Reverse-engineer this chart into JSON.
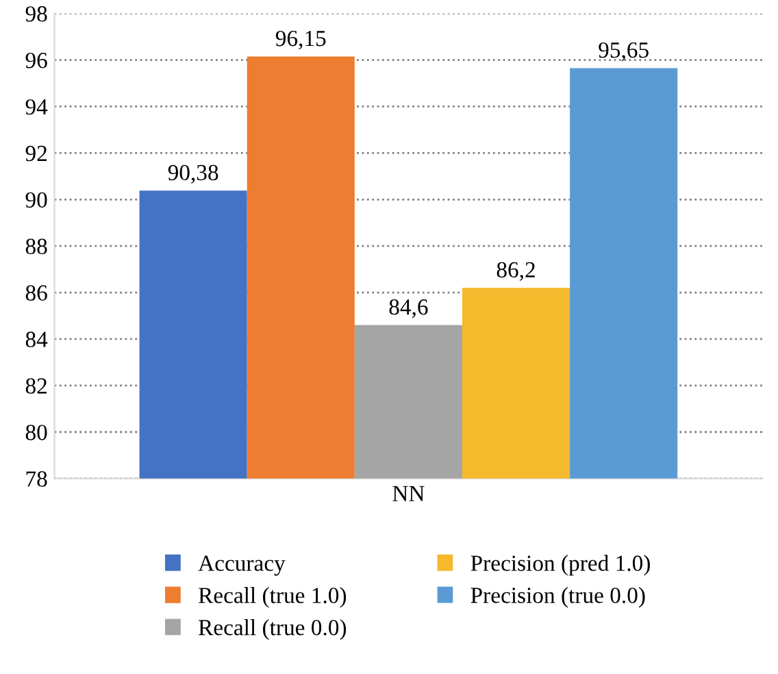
{
  "chart_data": {
    "type": "bar",
    "categories": [
      "NN"
    ],
    "series": [
      {
        "name": "Accuracy",
        "color": "#4472c4",
        "values": [
          90.38
        ],
        "value_labels": [
          "90,38"
        ]
      },
      {
        "name": "Recall (true 1.0)",
        "color": "#ed7d31",
        "values": [
          96.15
        ],
        "value_labels": [
          "96,15"
        ]
      },
      {
        "name": "Recall (true 0.0)",
        "color": "#a5a5a5",
        "values": [
          84.6
        ],
        "value_labels": [
          "84,6"
        ]
      },
      {
        "name": "Precision (pred 1.0)",
        "color": "#f4b92c",
        "values": [
          86.2
        ],
        "value_labels": [
          "86,2"
        ]
      },
      {
        "name": "Precision (true 0.0)",
        "color": "#5b9bd5",
        "values": [
          95.65
        ],
        "value_labels": [
          "95,65"
        ]
      }
    ],
    "ylim": [
      78,
      98
    ],
    "yticks": [
      78,
      80,
      82,
      84,
      86,
      88,
      90,
      92,
      94,
      96,
      98
    ],
    "grid": "y",
    "legend": "bottom"
  }
}
